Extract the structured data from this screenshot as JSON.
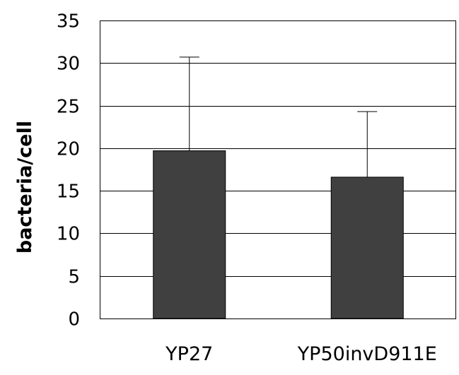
{
  "chart_data": {
    "type": "bar",
    "categories": [
      "YP27",
      "YP50invD911E"
    ],
    "values": [
      19.7,
      16.6
    ],
    "error_plus": [
      11.0,
      7.7
    ],
    "ylabel": "bacteria/cell",
    "xlabel": "",
    "ylim": [
      0,
      35
    ],
    "yticks": [
      "0",
      "5",
      "10",
      "15",
      "20",
      "25",
      "30",
      "35"
    ],
    "grid": true,
    "legend": "none",
    "bar_color": "#404040",
    "grid_color": "#000000"
  }
}
